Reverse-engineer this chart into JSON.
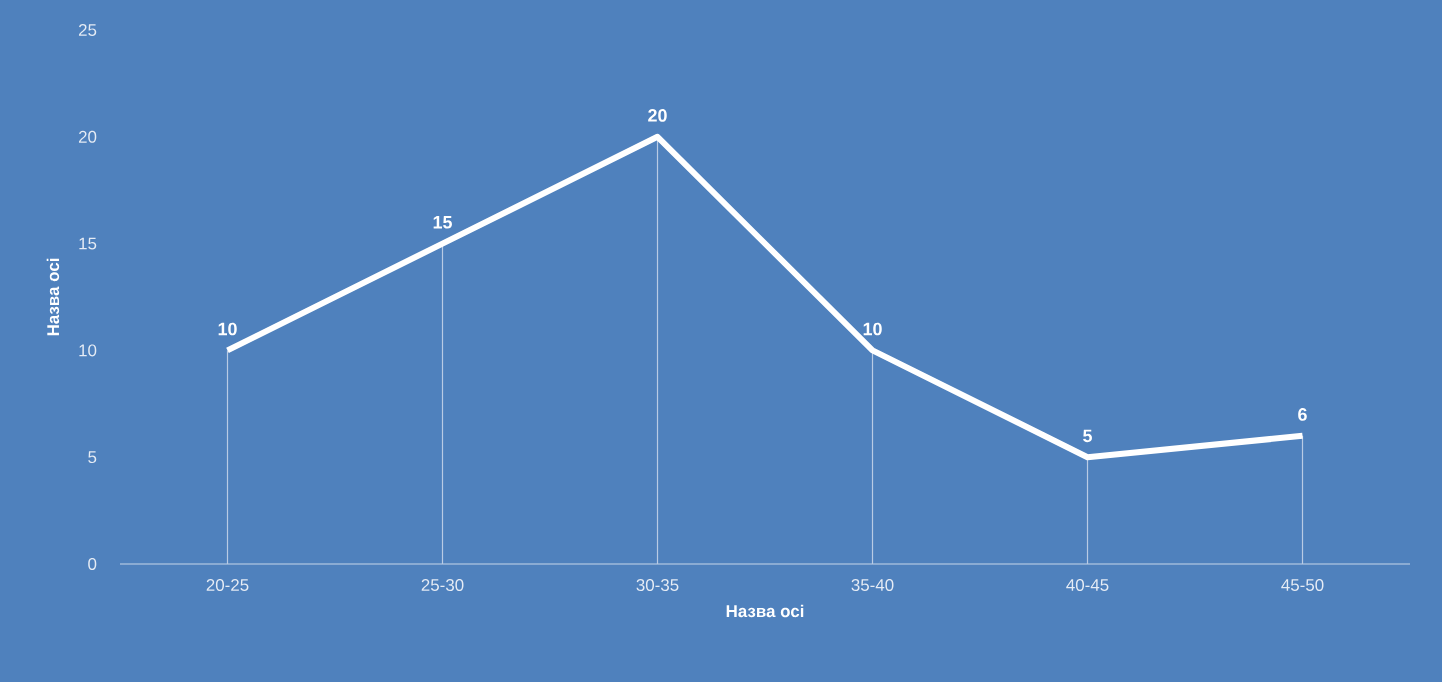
{
  "chart_data": {
    "type": "line",
    "xlabel": "Назва осі",
    "ylabel": "Назва осі",
    "categories": [
      "20-25",
      "25-30",
      "30-35",
      "35-40",
      "40-45",
      "45-50"
    ],
    "values": [
      10,
      15,
      20,
      10,
      5,
      6
    ],
    "color": "#ffffff",
    "ylim": [
      0,
      25
    ],
    "yticks": [
      0,
      5,
      10,
      15,
      20,
      25
    ],
    "grid": false,
    "marker": "none",
    "line_style": "solid",
    "data_labels": true
  }
}
